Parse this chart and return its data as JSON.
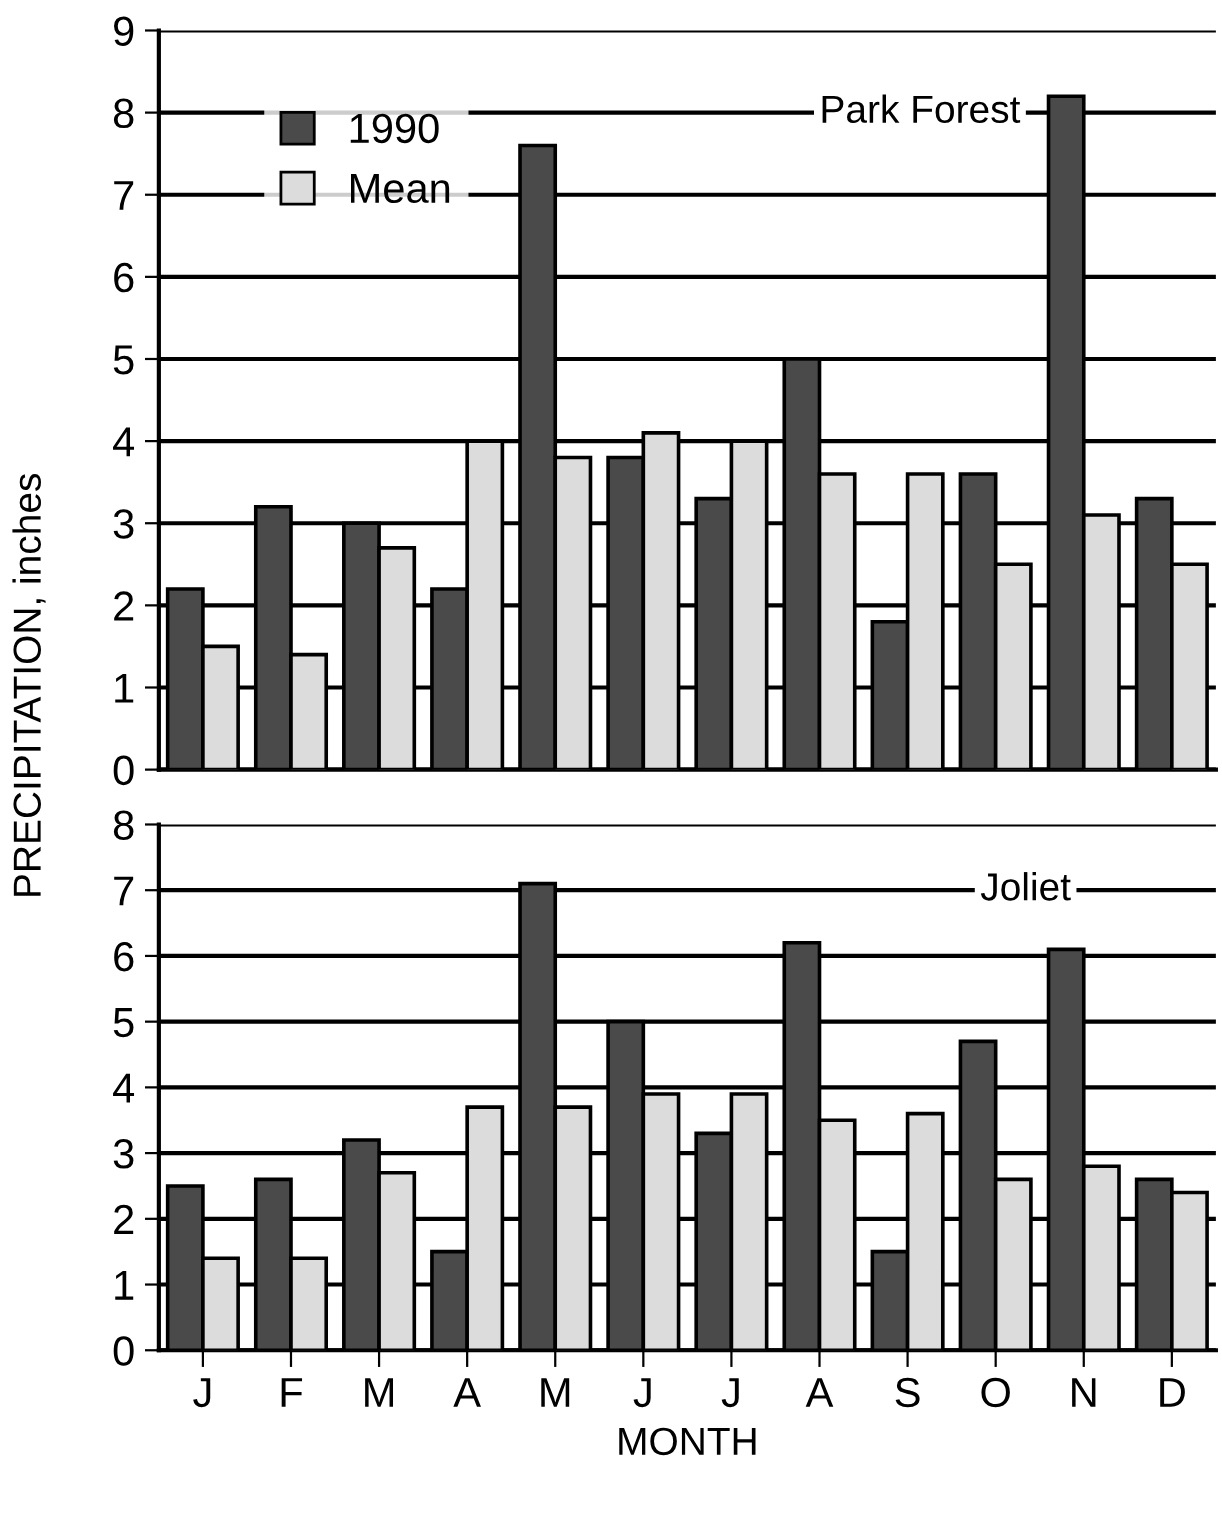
{
  "chart_data": [
    {
      "type": "bar",
      "title": "Park Forest",
      "ylabel": "PRECIPITATION, inches",
      "categories": [
        null,
        null,
        null,
        null,
        null,
        null,
        null,
        null,
        null,
        null,
        null,
        null
      ],
      "series": [
        {
          "name": "1990",
          "color": "#4a4a4a",
          "values": [
            2.2,
            3.2,
            3.0,
            2.2,
            7.6,
            3.8,
            3.3,
            5.0,
            1.8,
            3.6,
            8.2,
            3.3
          ]
        },
        {
          "name": "Mean",
          "color": "#dcdcdc",
          "values": [
            1.5,
            1.4,
            2.7,
            4.0,
            3.8,
            4.1,
            4.0,
            3.6,
            3.6,
            2.5,
            3.1,
            2.5
          ]
        }
      ],
      "ylim": [
        0,
        9
      ],
      "yticks": [
        0,
        1,
        2,
        3,
        4,
        5,
        6,
        7,
        8,
        9
      ],
      "grid": "y",
      "legend": "top left",
      "tick_labels": "y"
    },
    {
      "type": "bar",
      "title": "Joliet",
      "xlabel": "MONTH",
      "categories": [
        "J",
        "F",
        "M",
        "A",
        "M",
        "J",
        "J",
        "A",
        "S",
        "O",
        "N",
        "D"
      ],
      "series": [
        {
          "color": "#4a4a4a",
          "values": [
            2.5,
            2.6,
            3.2,
            1.5,
            7.1,
            5.0,
            3.3,
            6.2,
            1.5,
            4.7,
            6.1,
            2.6
          ]
        },
        {
          "color": "#dcdcdc",
          "values": [
            1.4,
            1.4,
            2.7,
            3.7,
            3.7,
            3.9,
            3.9,
            3.5,
            3.6,
            2.6,
            2.8,
            2.4
          ]
        }
      ],
      "ylim": [
        0,
        8
      ],
      "yticks": [
        0,
        1,
        2,
        3,
        4,
        5,
        6,
        7,
        8
      ],
      "grid": "y"
    }
  ]
}
